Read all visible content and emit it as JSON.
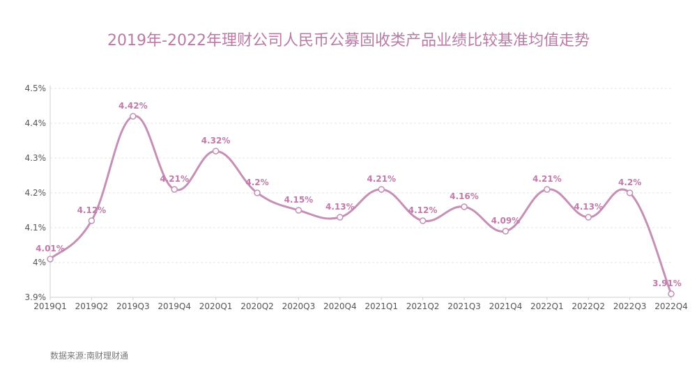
{
  "title": "2019年-2022年理财公司人民币公募固收类产品业绩比较基准均值走势",
  "source": "数据来源:南财理财通",
  "colors": {
    "line": "#c58fb6",
    "title": "#b87ba6",
    "label": "#c07aa9",
    "grid": "#e3e3e3",
    "axis": "#cfcfcf"
  },
  "chart_data": {
    "type": "line",
    "title": "2019年-2022年理财公司人民币公募固收类产品业绩比较基准均值走势",
    "categories": [
      "2019Q1",
      "2019Q2",
      "2019Q3",
      "2019Q4",
      "2020Q1",
      "2020Q2",
      "2020Q3",
      "2020Q4",
      "2021Q1",
      "2021Q2",
      "2021Q3",
      "2021Q4",
      "2022Q1",
      "2022Q2",
      "2022Q3",
      "2022Q4"
    ],
    "values": [
      4.01,
      4.12,
      4.42,
      4.21,
      4.32,
      4.2,
      4.15,
      4.13,
      4.21,
      4.12,
      4.16,
      4.09,
      4.21,
      4.13,
      4.2,
      3.91
    ],
    "value_labels": [
      "4.01%",
      "4.12%",
      "4.42%",
      "4.21%",
      "4.32%",
      "4.2%",
      "4.15%",
      "4.13%",
      "4.21%",
      "4.12%",
      "4.16%",
      "4.09%",
      "4.21%",
      "4.13%",
      "4.2%",
      "3.91%"
    ],
    "y_ticks": [
      3.9,
      4.0,
      4.1,
      4.2,
      4.3,
      4.4,
      4.5
    ],
    "y_tick_labels": [
      "3.9%",
      "4%",
      "4.1%",
      "4.2%",
      "4.3%",
      "4.4%",
      "4.5%"
    ],
    "ylim": [
      3.9,
      4.5
    ],
    "smooth": true,
    "grid": true
  }
}
